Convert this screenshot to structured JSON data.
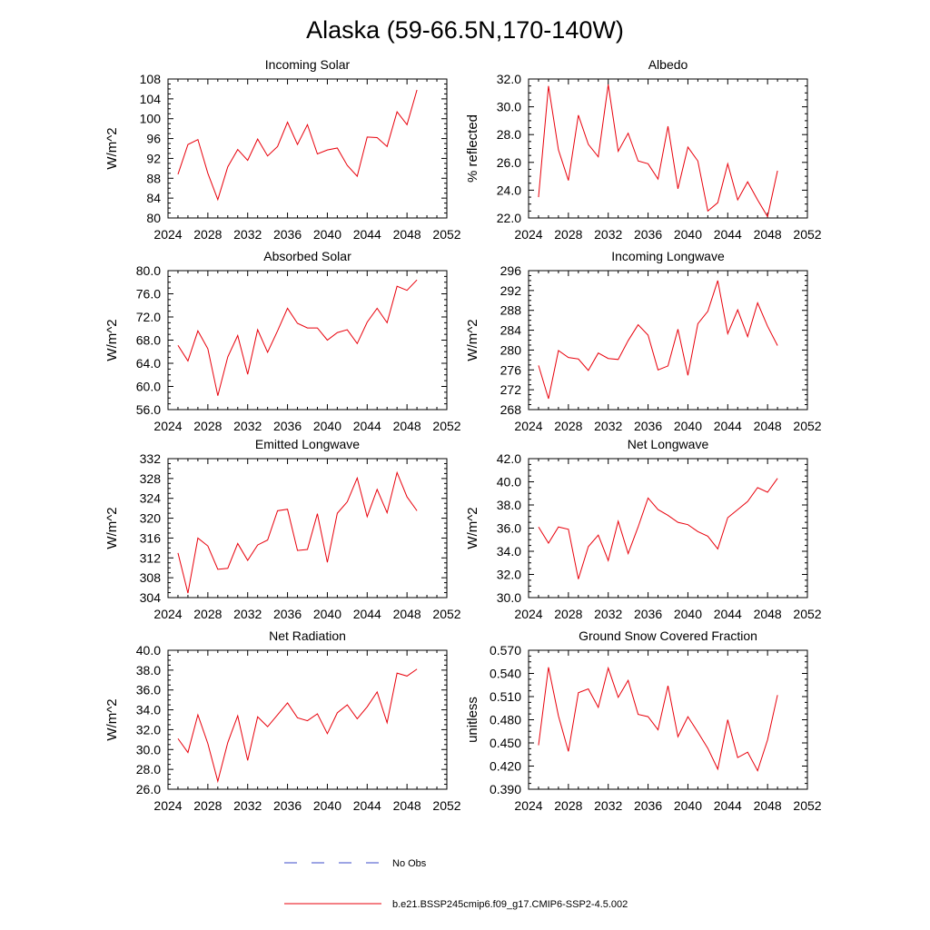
{
  "title": "Alaska (59-66.5N,170-140W)",
  "colors": {
    "series": "#e8000b",
    "obs": "#3b4bc8",
    "axis": "#000000"
  },
  "legend": [
    {
      "label": "No Obs",
      "style": "dashed",
      "color": "#3b4bc8"
    },
    {
      "label": "b.e21.BSSP245cmip6.f09_g17.CMIP6-SSP2-4.5.002",
      "style": "solid",
      "color": "#e8000b"
    }
  ],
  "chart_data": [
    {
      "type": "line",
      "title": "Incoming Solar",
      "ylabel": "W/m^2",
      "xlim": [
        2024,
        2052
      ],
      "ylim": [
        80,
        108
      ],
      "xticks": [
        "2024",
        "2028",
        "2032",
        "2036",
        "2040",
        "2044",
        "2048",
        "2052"
      ],
      "yticks": [
        "80",
        "84",
        "88",
        "92",
        "96",
        "100",
        "104",
        "108"
      ],
      "x": [
        2025,
        2026,
        2027,
        2028,
        2029,
        2030,
        2031,
        2032,
        2033,
        2034,
        2035,
        2036,
        2037,
        2038,
        2039,
        2040,
        2041,
        2042,
        2043,
        2044,
        2045,
        2046,
        2047,
        2048,
        2049
      ],
      "y": [
        88.8,
        94.8,
        95.8,
        89.0,
        83.7,
        90.3,
        93.8,
        91.6,
        95.9,
        92.5,
        94.4,
        99.3,
        94.8,
        98.8,
        92.9,
        93.7,
        94.1,
        90.6,
        88.4,
        96.3,
        96.2,
        94.4,
        101.4,
        98.8,
        105.8
      ]
    },
    {
      "type": "line",
      "title": "Albedo",
      "ylabel": "% reflected",
      "xlim": [
        2024,
        2052
      ],
      "ylim": [
        22,
        32
      ],
      "xticks": [
        "2024",
        "2028",
        "2032",
        "2036",
        "2040",
        "2044",
        "2048",
        "2052"
      ],
      "yticks": [
        "22.0",
        "24.0",
        "26.0",
        "28.0",
        "30.0",
        "32.0"
      ],
      "x": [
        2025,
        2026,
        2027,
        2028,
        2029,
        2030,
        2031,
        2032,
        2033,
        2034,
        2035,
        2036,
        2037,
        2038,
        2039,
        2040,
        2041,
        2042,
        2043,
        2044,
        2045,
        2046,
        2047,
        2048,
        2049
      ],
      "y": [
        23.5,
        31.5,
        26.9,
        24.7,
        29.4,
        27.3,
        26.4,
        31.6,
        26.8,
        28.1,
        26.1,
        25.9,
        24.8,
        28.6,
        24.1,
        27.1,
        26.1,
        22.5,
        23.1,
        25.9,
        23.3,
        24.6,
        23.3,
        22.1,
        25.4
      ]
    },
    {
      "type": "line",
      "title": "Absorbed Solar",
      "ylabel": "W/m^2",
      "xlim": [
        2024,
        2052
      ],
      "ylim": [
        56,
        80
      ],
      "xticks": [
        "2024",
        "2028",
        "2032",
        "2036",
        "2040",
        "2044",
        "2048",
        "2052"
      ],
      "yticks": [
        "56.0",
        "60.0",
        "64.0",
        "68.0",
        "72.0",
        "76.0",
        "80.0"
      ],
      "x": [
        2025,
        2026,
        2027,
        2028,
        2029,
        2030,
        2031,
        2032,
        2033,
        2034,
        2035,
        2036,
        2037,
        2038,
        2039,
        2040,
        2041,
        2042,
        2043,
        2044,
        2045,
        2046,
        2047,
        2048,
        2049
      ],
      "y": [
        67.1,
        64.4,
        69.6,
        66.5,
        58.4,
        65.1,
        68.8,
        62.1,
        69.8,
        65.9,
        69.6,
        73.5,
        70.9,
        70.1,
        70.1,
        68.0,
        69.3,
        69.8,
        67.4,
        71.1,
        73.5,
        71.0,
        77.3,
        76.6,
        78.4
      ]
    },
    {
      "type": "line",
      "title": "Incoming Longwave",
      "ylabel": "W/m^2",
      "xlim": [
        2024,
        2052
      ],
      "ylim": [
        268,
        296
      ],
      "xticks": [
        "2024",
        "2028",
        "2032",
        "2036",
        "2040",
        "2044",
        "2048",
        "2052"
      ],
      "yticks": [
        "268",
        "272",
        "276",
        "280",
        "284",
        "288",
        "292",
        "296"
      ],
      "x": [
        2025,
        2026,
        2027,
        2028,
        2029,
        2030,
        2031,
        2032,
        2033,
        2034,
        2035,
        2036,
        2037,
        2038,
        2039,
        2040,
        2041,
        2042,
        2043,
        2044,
        2045,
        2046,
        2047,
        2048,
        2049
      ],
      "y": [
        276.9,
        270.2,
        279.9,
        278.5,
        278.2,
        275.9,
        279.4,
        278.3,
        278.1,
        281.9,
        285.1,
        283.0,
        276.0,
        276.8,
        284.2,
        274.9,
        285.3,
        287.8,
        294.0,
        283.3,
        288.1,
        282.7,
        289.5,
        284.8,
        280.9
      ]
    },
    {
      "type": "line",
      "title": "Emitted Longwave",
      "ylabel": "W/m^2",
      "xlim": [
        2024,
        2052
      ],
      "ylim": [
        304,
        332
      ],
      "xticks": [
        "2024",
        "2028",
        "2032",
        "2036",
        "2040",
        "2044",
        "2048",
        "2052"
      ],
      "yticks": [
        "304",
        "308",
        "312",
        "316",
        "320",
        "324",
        "328",
        "332"
      ],
      "x": [
        2025,
        2026,
        2027,
        2028,
        2029,
        2030,
        2031,
        2032,
        2033,
        2034,
        2035,
        2036,
        2037,
        2038,
        2039,
        2040,
        2041,
        2042,
        2043,
        2044,
        2045,
        2046,
        2047,
        2048,
        2049
      ],
      "y": [
        313.0,
        304.9,
        316.0,
        314.4,
        309.7,
        309.9,
        314.9,
        311.5,
        314.6,
        315.6,
        321.5,
        321.8,
        313.5,
        313.7,
        320.9,
        311.1,
        321.0,
        323.3,
        328.1,
        320.3,
        325.8,
        321.1,
        329.2,
        324.3,
        321.5
      ]
    },
    {
      "type": "line",
      "title": "Net Longwave",
      "ylabel": "W/m^2",
      "xlim": [
        2024,
        2052
      ],
      "ylim": [
        30,
        42
      ],
      "xticks": [
        "2024",
        "2028",
        "2032",
        "2036",
        "2040",
        "2044",
        "2048",
        "2052"
      ],
      "yticks": [
        "30.0",
        "32.0",
        "34.0",
        "36.0",
        "38.0",
        "40.0",
        "42.0"
      ],
      "x": [
        2025,
        2026,
        2027,
        2028,
        2029,
        2030,
        2031,
        2032,
        2033,
        2034,
        2035,
        2036,
        2037,
        2038,
        2039,
        2040,
        2041,
        2042,
        2043,
        2044,
        2045,
        2046,
        2047,
        2048,
        2049
      ],
      "y": [
        36.1,
        34.7,
        36.1,
        35.9,
        31.6,
        34.4,
        35.4,
        33.2,
        36.6,
        33.8,
        36.1,
        38.6,
        37.6,
        37.1,
        36.5,
        36.3,
        35.7,
        35.3,
        34.2,
        36.9,
        37.6,
        38.3,
        39.5,
        39.1,
        40.3
      ]
    },
    {
      "type": "line",
      "title": "Net Radiation",
      "ylabel": "W/m^2",
      "xlim": [
        2024,
        2052
      ],
      "ylim": [
        26,
        40
      ],
      "xticks": [
        "2024",
        "2028",
        "2032",
        "2036",
        "2040",
        "2044",
        "2048",
        "2052"
      ],
      "yticks": [
        "26.0",
        "28.0",
        "30.0",
        "32.0",
        "34.0",
        "36.0",
        "38.0",
        "40.0"
      ],
      "x": [
        2025,
        2026,
        2027,
        2028,
        2029,
        2030,
        2031,
        2032,
        2033,
        2034,
        2035,
        2036,
        2037,
        2038,
        2039,
        2040,
        2041,
        2042,
        2043,
        2044,
        2045,
        2046,
        2047,
        2048,
        2049
      ],
      "y": [
        31.1,
        29.7,
        33.5,
        30.6,
        26.8,
        30.7,
        33.4,
        28.9,
        33.3,
        32.3,
        33.5,
        34.7,
        33.2,
        32.9,
        33.6,
        31.6,
        33.7,
        34.5,
        33.1,
        34.3,
        35.8,
        32.7,
        37.7,
        37.4,
        38.1
      ]
    },
    {
      "type": "line",
      "title": "Ground Snow Covered Fraction",
      "ylabel": "unitless",
      "xlim": [
        2024,
        2052
      ],
      "ylim": [
        0.39,
        0.57
      ],
      "xticks": [
        "2024",
        "2028",
        "2032",
        "2036",
        "2040",
        "2044",
        "2048",
        "2052"
      ],
      "yticks": [
        "0.390",
        "0.420",
        "0.450",
        "0.480",
        "0.510",
        "0.540",
        "0.570"
      ],
      "x": [
        2025,
        2026,
        2027,
        2028,
        2029,
        2030,
        2031,
        2032,
        2033,
        2034,
        2035,
        2036,
        2037,
        2038,
        2039,
        2040,
        2041,
        2042,
        2043,
        2044,
        2045,
        2046,
        2047,
        2048,
        2049
      ],
      "y": [
        0.447,
        0.548,
        0.485,
        0.439,
        0.515,
        0.52,
        0.496,
        0.547,
        0.509,
        0.531,
        0.487,
        0.484,
        0.467,
        0.524,
        0.458,
        0.484,
        0.464,
        0.443,
        0.416,
        0.48,
        0.431,
        0.438,
        0.414,
        0.454,
        0.512
      ]
    }
  ]
}
